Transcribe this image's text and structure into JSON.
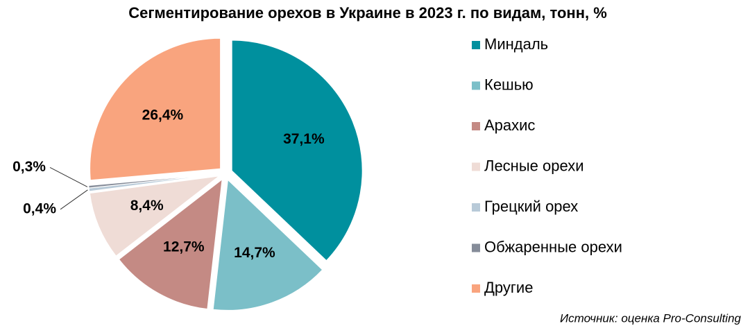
{
  "chart_data": {
    "type": "pie",
    "title": "Сегментирование орехов в Украине в 2023 г. по видам, тонн, %",
    "categories": [
      "Миндаль",
      "Кешью",
      "Арахис",
      "Лесные орехи",
      "Грецкий орех",
      "Обжаренные орехи",
      "Другие"
    ],
    "values": [
      37.1,
      14.7,
      12.7,
      8.4,
      0.4,
      0.3,
      26.4
    ],
    "value_labels": [
      "37,1%",
      "14,7%",
      "12,7%",
      "8,4%",
      "0,4%",
      "0,3%",
      "26,4%"
    ],
    "colors": [
      "#00909e",
      "#7bbfc8",
      "#c48a84",
      "#efdcd6",
      "#b8cad8",
      "#858c99",
      "#f9a47e"
    ],
    "legend": "right",
    "source": "Источник: оценка Pro-Consulting"
  }
}
